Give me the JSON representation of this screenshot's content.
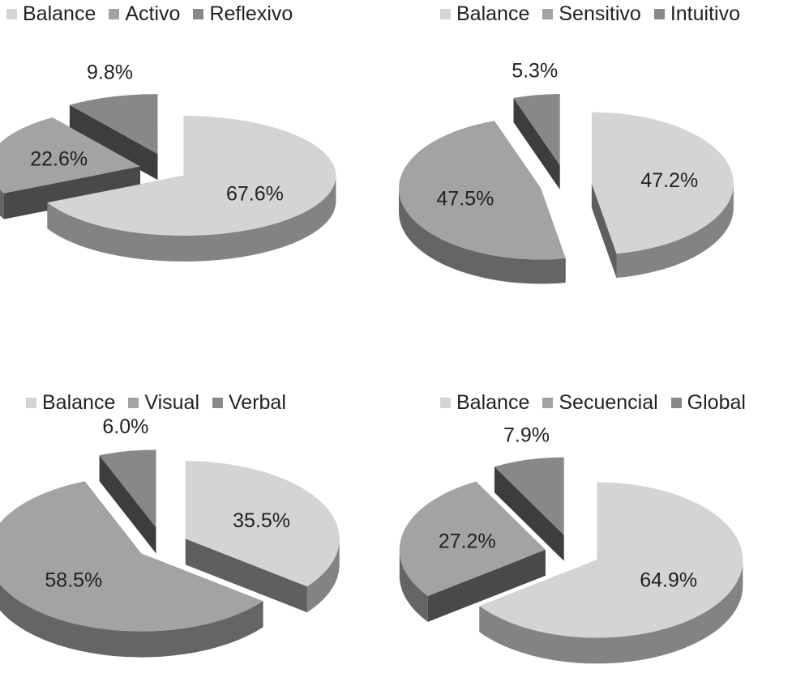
{
  "chart_data": [
    {
      "type": "pie",
      "style": "3d-exploded",
      "legend_position": "top",
      "labels": [
        "Balance",
        "Activo",
        "Reflexivo"
      ],
      "values": [
        67.6,
        22.6,
        9.8
      ],
      "data_labels": [
        "67.6%",
        "22.6%",
        "9.8%"
      ],
      "colors": [
        "#d4d4d4",
        "#a3a3a3",
        "#888888"
      ]
    },
    {
      "type": "pie",
      "style": "3d-exploded",
      "legend_position": "top",
      "labels": [
        "Balance",
        "Sensitivo",
        "Intuitivo"
      ],
      "values": [
        47.2,
        47.5,
        5.3
      ],
      "data_labels": [
        "47.2%",
        "47.5%",
        "5.3%"
      ],
      "colors": [
        "#d4d4d4",
        "#a3a3a3",
        "#888888"
      ]
    },
    {
      "type": "pie",
      "style": "3d-exploded",
      "legend_position": "top",
      "labels": [
        "Balance",
        "Visual",
        "Verbal"
      ],
      "values": [
        35.5,
        58.5,
        6.0
      ],
      "data_labels": [
        "35.5%",
        "58.5%",
        "6.0%"
      ],
      "colors": [
        "#d4d4d4",
        "#a3a3a3",
        "#888888"
      ]
    },
    {
      "type": "pie",
      "style": "3d-exploded",
      "legend_position": "top",
      "labels": [
        "Balance",
        "Secuencial",
        "Global"
      ],
      "values": [
        64.9,
        27.2,
        7.9
      ],
      "data_labels": [
        "64.9%",
        "27.2%",
        "7.9%"
      ],
      "colors": [
        "#d4d4d4",
        "#a3a3a3",
        "#888888"
      ]
    }
  ]
}
